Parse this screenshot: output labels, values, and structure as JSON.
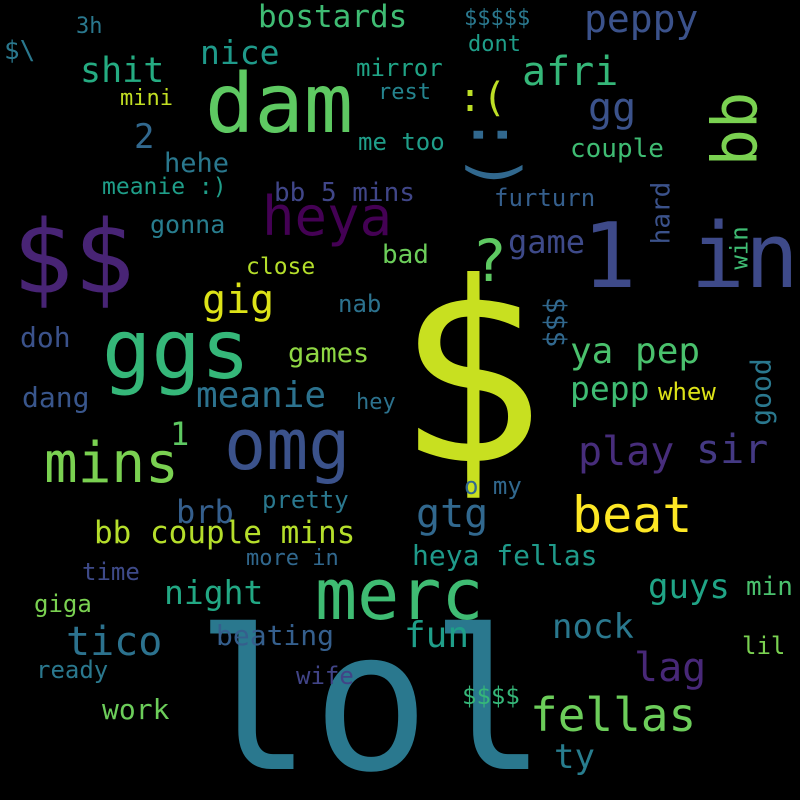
{
  "words": {
    "dollar_big": {
      "text": "$",
      "color": "#c8e020"
    },
    "lol": {
      "text": "lol",
      "color": "#2a788e"
    },
    "dollars_two": {
      "text": "$$",
      "color": "#482475"
    },
    "dam": {
      "text": "dam",
      "color": "#5ec962"
    },
    "one_in": {
      "text": "1 in",
      "color": "#3e4a89"
    },
    "merc": {
      "text": "merc",
      "color": "#3fbc73"
    },
    "ggs": {
      "text": "ggs",
      "color": "#35b779"
    },
    "omg": {
      "text": "omg",
      "color": "#3b528b"
    },
    "heya": {
      "text": "heya",
      "color": "#440154"
    },
    "smile": {
      "text": ":)",
      "color": "#31688e"
    },
    "bb_vertical": {
      "text": "bb",
      "color": "#7ad151"
    },
    "mins_big": {
      "text": "mins",
      "color": "#7ad151"
    },
    "fellas": {
      "text": "fellas",
      "color": "#6ccd5a"
    },
    "beat": {
      "text": "beat",
      "color": "#fde725"
    },
    "peppy": {
      "text": "peppy",
      "color": "#3b528b"
    },
    "afri": {
      "text": "afri",
      "color": "#35b779"
    },
    "sad": {
      "text": ":(",
      "color": "#bddf26"
    },
    "gg": {
      "text": "gg",
      "color": "#3b528b"
    },
    "tico": {
      "text": "tico",
      "color": "#2c728e"
    },
    "play": {
      "text": "play",
      "color": "#472d7b"
    },
    "sir": {
      "text": "sir",
      "color": "#443983"
    },
    "lag": {
      "text": "lag",
      "color": "#482878"
    },
    "gtg": {
      "text": "gtg",
      "color": "#31688e"
    },
    "bb_couple_mins": {
      "text": "bb couple mins",
      "color": "#b5de2b"
    },
    "gig": {
      "text": "gig",
      "color": "#dde318"
    },
    "meanie": {
      "text": "meanie",
      "color": "#2c728e"
    },
    "shit": {
      "text": "shit",
      "color": "#25ac82"
    },
    "nice": {
      "text": "nice",
      "color": "#1f9a8a"
    },
    "bostards": {
      "text": "bostards",
      "color": "#3fbc73"
    },
    "question": {
      "text": "?",
      "color": "#5ec962"
    },
    "game": {
      "text": "game",
      "color": "#3e4a89"
    },
    "ya_pep": {
      "text": "ya pep",
      "color": "#4ac16d"
    },
    "pepp": {
      "text": "pepp",
      "color": "#3fbc73"
    },
    "night": {
      "text": "night",
      "color": "#22a884"
    },
    "fun": {
      "text": "fun",
      "color": "#1f9e89"
    },
    "nock": {
      "text": "nock",
      "color": "#2a788e"
    },
    "guys": {
      "text": "guys",
      "color": "#20a486"
    },
    "heya_fellas": {
      "text": "heya fellas",
      "color": "#1f9a8a"
    },
    "beating": {
      "text": "beating",
      "color": "#355f8d"
    },
    "work": {
      "text": "work",
      "color": "#6ccd5a"
    },
    "ty": {
      "text": "ty",
      "color": "#287d8e"
    },
    "bb_5_mins": {
      "text": "bb 5 mins",
      "color": "#404688"
    },
    "hehe": {
      "text": "hehe",
      "color": "#2a788e"
    },
    "meanie_smile": {
      "text": "meanie :)",
      "color": "#1f9e89"
    },
    "two": {
      "text": "2",
      "color": "#31688e"
    },
    "games": {
      "text": "games",
      "color": "#8fd744"
    },
    "close": {
      "text": "close",
      "color": "#b5de2b"
    },
    "bad": {
      "text": "bad",
      "color": "#6ccd5a"
    },
    "gonna": {
      "text": "gonna",
      "color": "#287d8e"
    },
    "doh": {
      "text": "doh",
      "color": "#3b528b"
    },
    "dang": {
      "text": "dang",
      "color": "#39568c"
    },
    "brb": {
      "text": "brb",
      "color": "#355f8d"
    },
    "one_small": {
      "text": "1",
      "color": "#5ec962"
    },
    "mini": {
      "text": "mini",
      "color": "#c2df23"
    },
    "mirror": {
      "text": "mirror",
      "color": "#20a486"
    },
    "rest": {
      "text": "rest",
      "color": "#25848e"
    },
    "me_too": {
      "text": "me too",
      "color": "#1f9e89"
    },
    "couple": {
      "text": "couple",
      "color": "#3fbc73"
    },
    "furturn": {
      "text": "furturn",
      "color": "#355f8d"
    },
    "hard": {
      "text": "hard",
      "color": "#3b528b"
    },
    "win": {
      "text": "win",
      "color": "#3fbc73"
    },
    "good": {
      "text": "good",
      "color": "#2a788e"
    },
    "whew": {
      "text": "whew",
      "color": "#dde318"
    },
    "triple_dollar": {
      "text": "$$$",
      "color": "#31688e"
    },
    "nab": {
      "text": "nab",
      "color": "#2c728e"
    },
    "hey": {
      "text": "hey",
      "color": "#2c728e"
    },
    "pretty": {
      "text": "pretty",
      "color": "#2a788e"
    },
    "o_my": {
      "text": "o my",
      "color": "#31688e"
    },
    "more_in": {
      "text": "more in",
      "color": "#31688e"
    },
    "time": {
      "text": "time",
      "color": "#3e4a89"
    },
    "giga": {
      "text": "giga",
      "color": "#7ad151"
    },
    "ready": {
      "text": "ready",
      "color": "#2a788e"
    },
    "wife": {
      "text": "wife",
      "color": "#414487"
    },
    "quad_dollar": {
      "text": "$$$$",
      "color": "#35b779"
    },
    "lil": {
      "text": "lil",
      "color": "#7ad151"
    },
    "min": {
      "text": "min",
      "color": "#4ac16d"
    },
    "five_dollar": {
      "text": "$$$$$",
      "color": "#2a788e"
    },
    "three_h": {
      "text": "3h",
      "color": "#2a788e"
    },
    "dollar_backslash": {
      "text": "$\\",
      "color": "#2a788e"
    },
    "dont": {
      "text": "dont",
      "color": "#1f9e89"
    }
  }
}
